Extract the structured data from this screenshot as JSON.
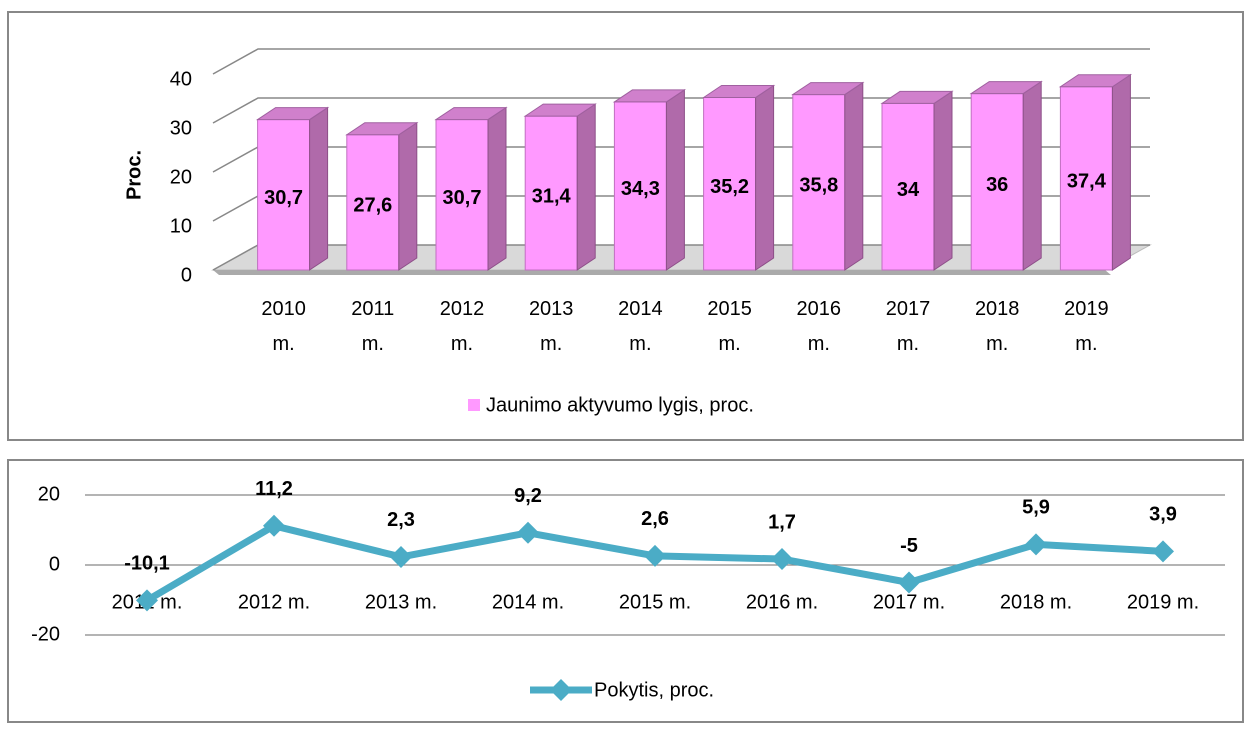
{
  "chart_data": [
    {
      "type": "bar3d",
      "y_label": "Proc.",
      "categories": [
        "2010 m.",
        "2011 m.",
        "2012 m.",
        "2013 m.",
        "2014 m.",
        "2015 m.",
        "2016 m.",
        "2017 m.",
        "2018 m.",
        "2019 m."
      ],
      "series": [
        {
          "name": "Jaunimo aktyvumo lygis, proc.",
          "color": "#ff99ff",
          "values": [
            30.7,
            27.6,
            30.7,
            31.4,
            34.3,
            35.2,
            35.8,
            34,
            36,
            37.4
          ],
          "value_labels": [
            "30,7",
            "27,6",
            "30,7",
            "31,4",
            "34,3",
            "35,2",
            "35,8",
            "34",
            "36",
            "37,4"
          ]
        }
      ],
      "ylim": [
        0,
        40
      ],
      "yticks": [
        0,
        10,
        20,
        30,
        40
      ],
      "grid": true,
      "legend": "bottom"
    },
    {
      "type": "line",
      "categories": [
        "2011 m.",
        "2012 m.",
        "2013 m.",
        "2014 m.",
        "2015 m.",
        "2016 m.",
        "2017 m.",
        "2018 m.",
        "2019 m."
      ],
      "series": [
        {
          "name": "Pokytis, proc.",
          "color": "#4bacc6",
          "values": [
            -10.1,
            11.2,
            2.3,
            9.2,
            2.6,
            1.7,
            -5,
            5.9,
            3.9
          ],
          "value_labels": [
            "-10,1",
            "11,2",
            "2,3",
            "9,2",
            "2,6",
            "1,7",
            "-5",
            "5,9",
            "3,9"
          ]
        }
      ],
      "ylim": [
        -20,
        20
      ],
      "yticks": [
        -20,
        0,
        20
      ],
      "grid": true,
      "legend": "bottom"
    }
  ]
}
